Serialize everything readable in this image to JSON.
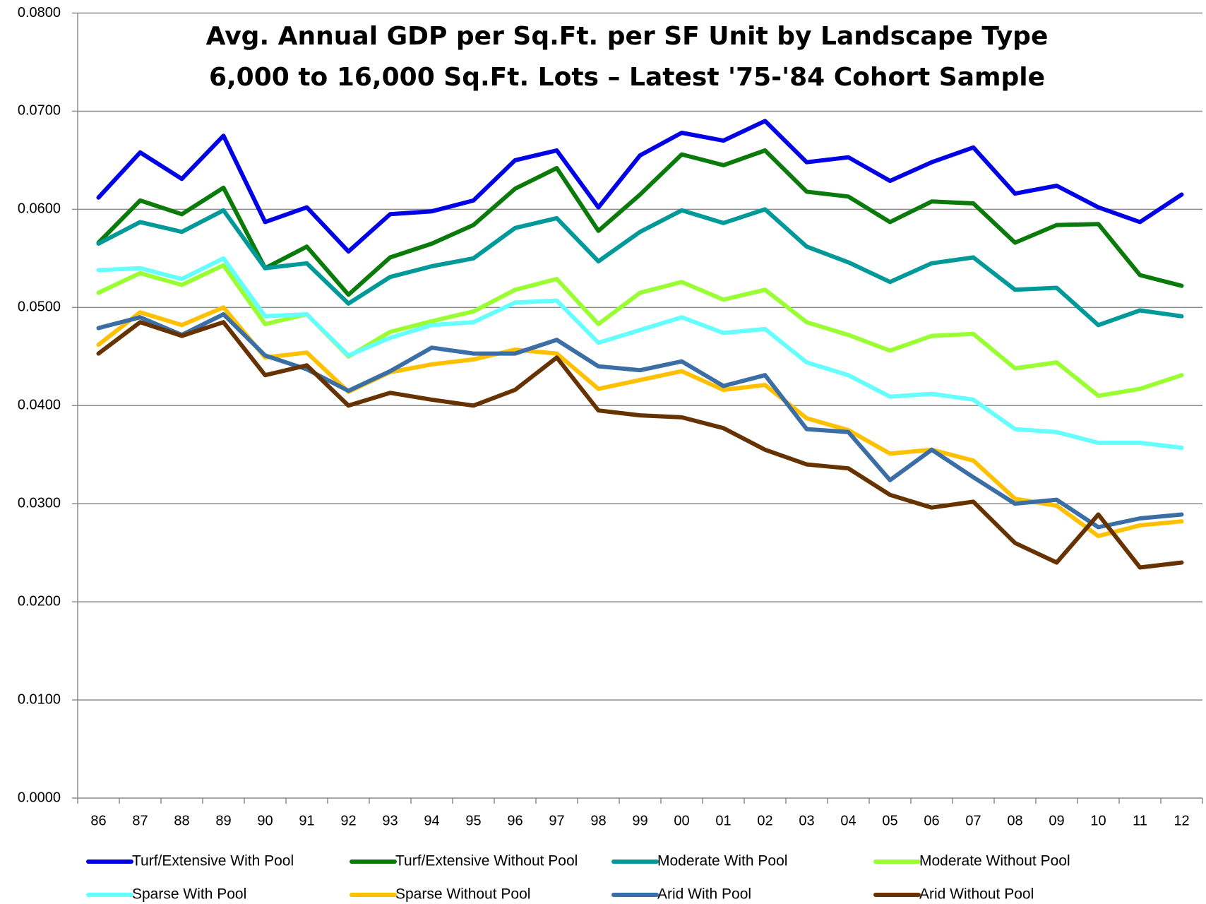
{
  "chart_data": {
    "type": "line",
    "title": "Avg. Annual GDP per Sq.Ft. per SF Unit by Landscape Type",
    "subtitle": "6,000 to 16,000 Sq.Ft. Lots – Latest '75-'84 Cohort Sample",
    "categories": [
      "86",
      "87",
      "88",
      "89",
      "90",
      "91",
      "92",
      "93",
      "94",
      "95",
      "96",
      "97",
      "98",
      "99",
      "00",
      "01",
      "02",
      "03",
      "04",
      "05",
      "06",
      "07",
      "08",
      "09",
      "10",
      "11",
      "12"
    ],
    "ylim": [
      0,
      0.08
    ],
    "yticks": [
      {
        "value": 0,
        "label": "0.0000"
      },
      {
        "value": 0.01,
        "label": "0.0100"
      },
      {
        "value": 0.02,
        "label": "0.0200"
      },
      {
        "value": 0.03,
        "label": "0.0300"
      },
      {
        "value": 0.04,
        "label": "0.0400"
      },
      {
        "value": 0.05,
        "label": "0.0500"
      },
      {
        "value": 0.06,
        "label": "0.0600"
      },
      {
        "value": 0.07,
        "label": "0.0700"
      },
      {
        "value": 0.08,
        "label": "0.0800"
      }
    ],
    "grid": true,
    "legend": "bottom",
    "series": [
      {
        "name": "Turf/Extensive With Pool",
        "color": "#0000e6",
        "values": [
          0.0612,
          0.0658,
          0.0631,
          0.0675,
          0.0587,
          0.0602,
          0.0557,
          0.0595,
          0.0598,
          0.0609,
          0.065,
          0.066,
          0.0602,
          0.0655,
          0.0678,
          0.067,
          0.069,
          0.0648,
          0.0653,
          0.0629,
          0.0648,
          0.0663,
          0.0616,
          0.0624,
          0.0602,
          0.0587,
          0.0615
        ]
      },
      {
        "name": "Turf/Extensive Without Pool",
        "color": "#0a7a0a",
        "values": [
          0.0566,
          0.0609,
          0.0595,
          0.0622,
          0.054,
          0.0562,
          0.0513,
          0.0551,
          0.0565,
          0.0584,
          0.0621,
          0.0642,
          0.0578,
          0.0615,
          0.0656,
          0.0645,
          0.066,
          0.0618,
          0.0613,
          0.0587,
          0.0608,
          0.0606,
          0.0566,
          0.0584,
          0.0585,
          0.0533,
          0.0522
        ]
      },
      {
        "name": "Moderate With Pool",
        "color": "#009999",
        "values": [
          0.0565,
          0.0587,
          0.0577,
          0.0599,
          0.054,
          0.0545,
          0.0504,
          0.0531,
          0.0542,
          0.055,
          0.0581,
          0.0591,
          0.0547,
          0.0577,
          0.0599,
          0.0586,
          0.06,
          0.0562,
          0.0546,
          0.0526,
          0.0545,
          0.0551,
          0.0518,
          0.052,
          0.0482,
          0.0497,
          0.0491
        ]
      },
      {
        "name": "Moderate Without Pool",
        "color": "#99ff33",
        "values": [
          0.0515,
          0.0535,
          0.0523,
          0.0543,
          0.0483,
          0.0493,
          0.045,
          0.0475,
          0.0486,
          0.0496,
          0.0518,
          0.0529,
          0.0483,
          0.0515,
          0.0526,
          0.0508,
          0.0518,
          0.0485,
          0.0472,
          0.0456,
          0.0471,
          0.0473,
          0.0438,
          0.0444,
          0.041,
          0.0417,
          0.0431
        ]
      },
      {
        "name": "Sparse With Pool",
        "color": "#66ffff",
        "values": [
          0.0538,
          0.054,
          0.0529,
          0.055,
          0.0491,
          0.0493,
          0.0451,
          0.0469,
          0.0482,
          0.0485,
          0.0505,
          0.0507,
          0.0464,
          0.0477,
          0.049,
          0.0474,
          0.0478,
          0.0444,
          0.0431,
          0.0409,
          0.0412,
          0.0406,
          0.0376,
          0.0373,
          0.0362,
          0.0362,
          0.0357
        ]
      },
      {
        "name": "Sparse Without Pool",
        "color": "#ffc000",
        "values": [
          0.0462,
          0.0495,
          0.0482,
          0.05,
          0.0449,
          0.0454,
          0.0414,
          0.0434,
          0.0442,
          0.0447,
          0.0457,
          0.0453,
          0.0417,
          0.0426,
          0.0435,
          0.0416,
          0.0421,
          0.0387,
          0.0375,
          0.0351,
          0.0355,
          0.0344,
          0.0305,
          0.0298,
          0.0267,
          0.0278,
          0.0282
        ]
      },
      {
        "name": "Arid With Pool",
        "color": "#3a6ea5",
        "values": [
          0.0479,
          0.049,
          0.0472,
          0.0493,
          0.0451,
          0.0437,
          0.0415,
          0.0435,
          0.0459,
          0.0453,
          0.0453,
          0.0467,
          0.044,
          0.0436,
          0.0445,
          0.042,
          0.0431,
          0.0376,
          0.0373,
          0.0324,
          0.0355,
          0.0327,
          0.03,
          0.0304,
          0.0276,
          0.0285,
          0.0289
        ]
      },
      {
        "name": "Arid Without Pool",
        "color": "#663300",
        "values": [
          0.0453,
          0.0485,
          0.0471,
          0.0485,
          0.0431,
          0.0441,
          0.04,
          0.0413,
          0.0406,
          0.04,
          0.0416,
          0.0449,
          0.0395,
          0.039,
          0.0388,
          0.0377,
          0.0355,
          0.034,
          0.0336,
          0.0309,
          0.0296,
          0.0302,
          0.026,
          0.024,
          0.0289,
          0.0235,
          0.024
        ]
      }
    ]
  }
}
